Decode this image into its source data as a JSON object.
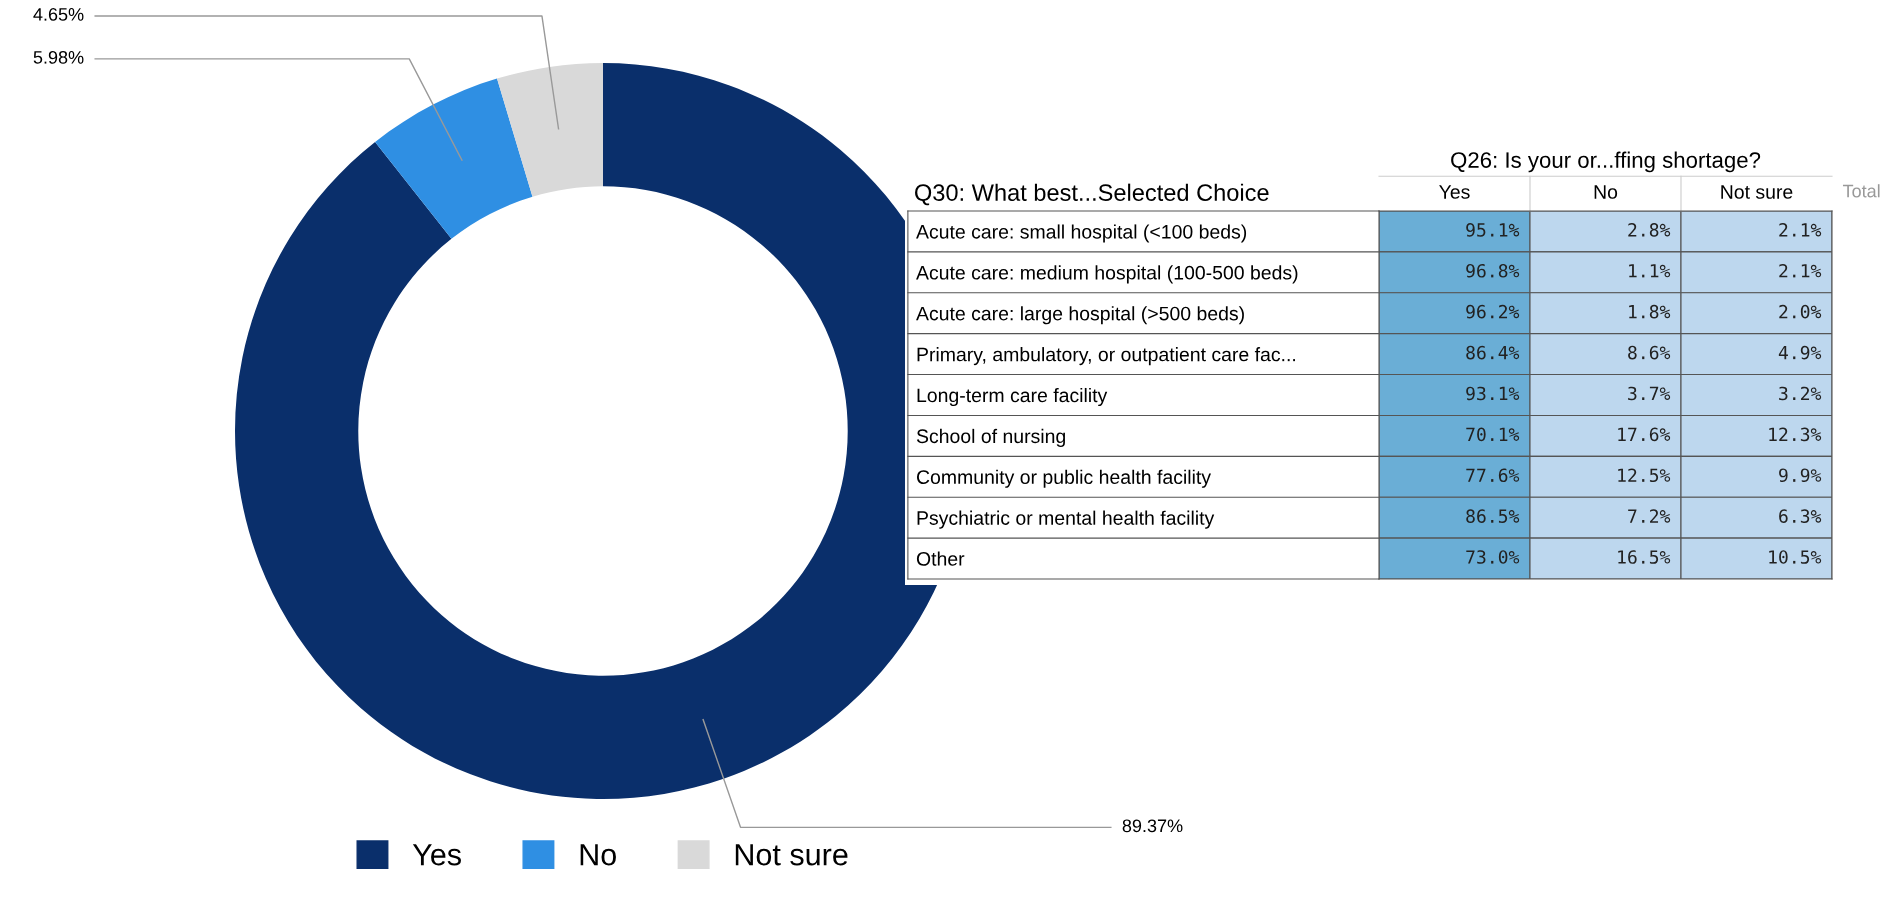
{
  "chart_data": [
    {
      "type": "donut",
      "categories": [
        "Yes",
        "No",
        "Not sure"
      ],
      "values": [
        89.37,
        5.98,
        4.65
      ],
      "colors": [
        "#0a2f6b",
        "#2f8fe3",
        "#d9d9d9"
      ],
      "value_labels": [
        "89.37%",
        "5.98%",
        "4.65%"
      ],
      "legend": "bottom"
    },
    {
      "type": "heatmap",
      "title": "Q26: Is your or...ffing shortage?",
      "ylabel": "Q30: What best...Selected Choice",
      "annotations": [
        "Total"
      ],
      "categories": [
        "Yes",
        "No",
        "Not sure"
      ],
      "y_categories": [
        "Acute care: small hospital (<100 beds)",
        "Acute care: medium hospital (100-500 beds)",
        "Acute care: large hospital (>500 beds)",
        "Primary, ambulatory, or outpatient care fac...",
        "Long-term care facility",
        "School of nursing",
        "Community or public health facility",
        "Psychiatric or mental health facility",
        "Other"
      ],
      "cells": [
        [
          95.1,
          2.8,
          2.1
        ],
        [
          96.8,
          1.1,
          2.1
        ],
        [
          96.2,
          1.8,
          2.0
        ],
        [
          86.4,
          8.6,
          4.9
        ],
        [
          93.1,
          3.7,
          3.2
        ],
        [
          70.1,
          17.6,
          12.3
        ],
        [
          77.6,
          12.5,
          9.9
        ],
        [
          86.5,
          7.2,
          6.3
        ],
        [
          73.0,
          16.5,
          10.5
        ]
      ],
      "cell_labels": [
        [
          "95.1%",
          "2.8%",
          "2.1%"
        ],
        [
          "96.8%",
          "1.1%",
          "2.1%"
        ],
        [
          "96.2%",
          "1.8%",
          "2.0%"
        ],
        [
          "86.4%",
          "8.6%",
          "4.9%"
        ],
        [
          "93.1%",
          "3.7%",
          "3.2%"
        ],
        [
          "70.1%",
          "17.6%",
          "12.3%"
        ],
        [
          "77.6%",
          "12.5%",
          "9.9%"
        ],
        [
          "86.5%",
          "7.2%",
          "6.3%"
        ],
        [
          "73.0%",
          "16.5%",
          "10.5%"
        ]
      ],
      "colors": [
        "#bdd7ee",
        "#6aaed6"
      ]
    }
  ]
}
